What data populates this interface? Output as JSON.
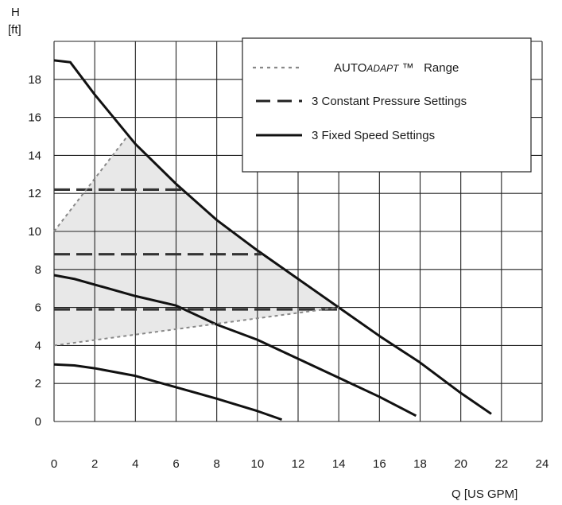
{
  "chart_data": {
    "type": "line",
    "xlabel": "Q [US GPM]",
    "ylabel_line1": "H",
    "ylabel_line2": "[ft]",
    "xlim": [
      0,
      24
    ],
    "ylim": [
      0,
      20
    ],
    "x_ticks": [
      0,
      2,
      4,
      6,
      8,
      10,
      12,
      14,
      16,
      18,
      20,
      22,
      24
    ],
    "y_ticks": [
      0,
      2,
      4,
      6,
      8,
      10,
      12,
      14,
      16,
      18
    ],
    "grid": true,
    "legend_position": "top-right",
    "legend": [
      {
        "style": "dotted",
        "label_prefix": "AUTO",
        "label_italic": "ADAPT",
        "label_suffix": " ™   Range"
      },
      {
        "style": "dashed",
        "label": "3 Constant Pressure Settings"
      },
      {
        "style": "solid",
        "label": "3 Fixed Speed Settings"
      }
    ],
    "colors": {
      "curve": "#111111",
      "range": "#888888",
      "grid": "#222222",
      "shade": "#e8e8e8"
    },
    "series": [
      {
        "style": "solid",
        "points": [
          [
            0,
            19
          ],
          [
            0.8,
            18.9
          ],
          [
            2,
            17.2
          ],
          [
            4,
            14.6
          ],
          [
            6,
            12.5
          ],
          [
            8,
            10.6
          ],
          [
            10,
            9.0
          ],
          [
            12,
            7.5
          ],
          [
            14,
            6.0
          ],
          [
            16,
            4.5
          ],
          [
            18,
            3.1
          ],
          [
            20,
            1.5
          ],
          [
            21.5,
            0.4
          ]
        ]
      },
      {
        "style": "solid",
        "points": [
          [
            0,
            7.7
          ],
          [
            1,
            7.5
          ],
          [
            2,
            7.2
          ],
          [
            4,
            6.6
          ],
          [
            6,
            6.1
          ],
          [
            8,
            5.1
          ],
          [
            10,
            4.3
          ],
          [
            12,
            3.3
          ],
          [
            14,
            2.3
          ],
          [
            16,
            1.3
          ],
          [
            17.8,
            0.3
          ]
        ]
      },
      {
        "style": "solid",
        "points": [
          [
            0,
            3.0
          ],
          [
            1,
            2.95
          ],
          [
            2,
            2.8
          ],
          [
            4,
            2.4
          ],
          [
            6,
            1.8
          ],
          [
            8,
            1.2
          ],
          [
            10,
            0.55
          ],
          [
            11.2,
            0.1
          ]
        ]
      },
      {
        "style": "dashed",
        "points": [
          [
            0,
            12.2
          ],
          [
            6.3,
            12.2
          ]
        ]
      },
      {
        "style": "dashed",
        "points": [
          [
            0,
            8.8
          ],
          [
            10.2,
            8.8
          ]
        ]
      },
      {
        "style": "dashed",
        "points": [
          [
            0,
            5.9
          ],
          [
            14.2,
            5.9
          ]
        ]
      },
      {
        "style": "dotted",
        "points": [
          [
            0,
            10
          ],
          [
            3.6,
            15
          ]
        ]
      },
      {
        "style": "dotted",
        "points": [
          [
            0,
            4
          ],
          [
            14,
            6
          ]
        ]
      }
    ],
    "range_region": [
      [
        0,
        10
      ],
      [
        3.6,
        15
      ],
      [
        4,
        14.6
      ],
      [
        6,
        12.5
      ],
      [
        8,
        10.6
      ],
      [
        10,
        9.0
      ],
      [
        12,
        7.5
      ],
      [
        14,
        6.0
      ],
      [
        0,
        4
      ]
    ]
  }
}
